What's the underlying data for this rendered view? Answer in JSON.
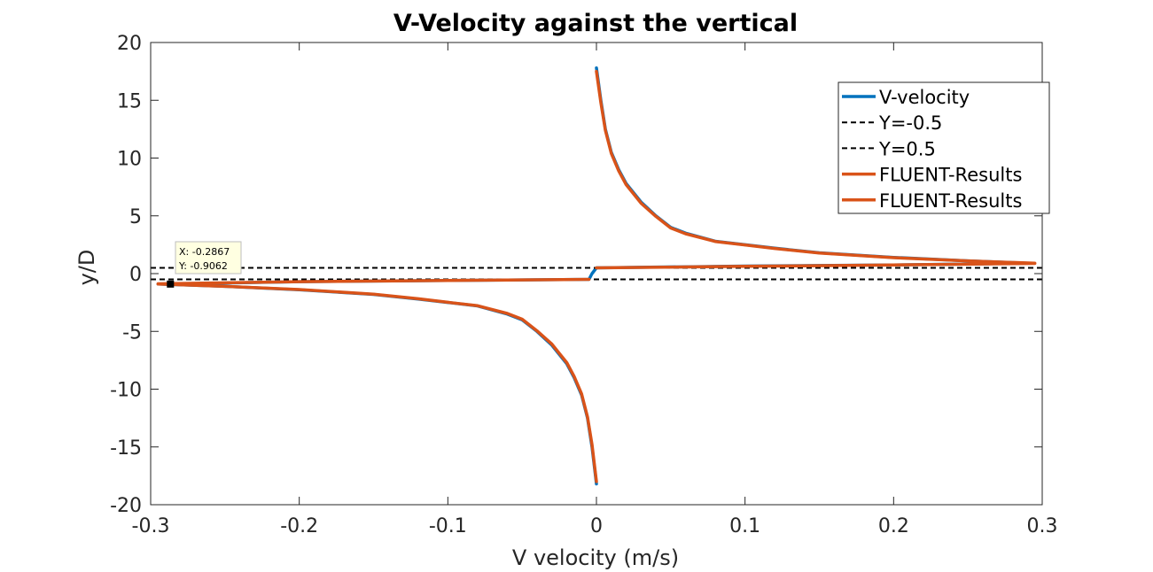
{
  "chart_data": {
    "type": "line",
    "title": "V-Velocity against the vertical",
    "xlabel": "V velocity (m/s)",
    "ylabel": "y/D",
    "xlim": [
      -0.3,
      0.3
    ],
    "ylim": [
      -20,
      20
    ],
    "xticks": [
      -0.3,
      -0.2,
      -0.1,
      0,
      0.1,
      0.2,
      0.3
    ],
    "xtick_labels": [
      "-0.3",
      "-0.2",
      "-0.1",
      "0",
      "0.1",
      "0.2",
      "0.3"
    ],
    "yticks": [
      -20,
      -15,
      -10,
      -5,
      0,
      5,
      10,
      15,
      20
    ],
    "ytick_labels": [
      "-20",
      "-15",
      "-10",
      "-5",
      "0",
      "5",
      "10",
      "15",
      "20"
    ],
    "grid": false,
    "legend_position": "top-right",
    "series": [
      {
        "name": "V-velocity",
        "color": "#0072BD",
        "style": "solid",
        "segments": [
          [
            [
              0.0,
              17.8
            ],
            [
              0.003,
              15.0
            ],
            [
              0.006,
              12.5
            ],
            [
              0.01,
              10.5
            ],
            [
              0.015,
              9.0
            ],
            [
              0.02,
              7.8
            ],
            [
              0.03,
              6.2
            ],
            [
              0.04,
              5.0
            ],
            [
              0.05,
              4.0
            ],
            [
              0.06,
              3.5
            ],
            [
              0.08,
              2.8
            ],
            [
              0.1,
              2.5
            ],
            [
              0.12,
              2.2
            ],
            [
              0.15,
              1.8
            ],
            [
              0.2,
              1.4
            ],
            [
              0.25,
              1.1
            ],
            [
              0.29,
              0.9
            ]
          ],
          [
            [
              0.29,
              0.9
            ],
            [
              0.2,
              0.75
            ],
            [
              0.1,
              0.65
            ],
            [
              0.0,
              0.5
            ],
            [
              -0.003,
              0.0
            ],
            [
              -0.005,
              -0.5
            ],
            [
              -0.1,
              -0.6
            ],
            [
              -0.2,
              -0.7
            ],
            [
              -0.2867,
              -0.9062
            ],
            [
              -0.295,
              -0.9
            ]
          ],
          [
            [
              -0.295,
              -0.9
            ],
            [
              -0.25,
              -1.1
            ],
            [
              -0.2,
              -1.4
            ],
            [
              -0.15,
              -1.8
            ],
            [
              -0.12,
              -2.2
            ],
            [
              -0.1,
              -2.5
            ],
            [
              -0.08,
              -2.8
            ],
            [
              -0.06,
              -3.5
            ],
            [
              -0.05,
              -4.0
            ],
            [
              -0.04,
              -5.0
            ],
            [
              -0.03,
              -6.2
            ],
            [
              -0.02,
              -7.8
            ],
            [
              -0.015,
              -9.0
            ],
            [
              -0.01,
              -10.5
            ],
            [
              -0.006,
              -12.5
            ],
            [
              -0.003,
              -15.0
            ],
            [
              0.0,
              -18.2
            ]
          ]
        ]
      },
      {
        "name": "Y=-0.5",
        "color": "#000000",
        "style": "dashed",
        "segments": [
          [
            [
              -0.3,
              -0.5
            ],
            [
              0.3,
              -0.5
            ]
          ]
        ]
      },
      {
        "name": "Y=0.5",
        "color": "#000000",
        "style": "dashed",
        "segments": [
          [
            [
              -0.3,
              0.5
            ],
            [
              0.3,
              0.5
            ]
          ]
        ]
      },
      {
        "name": "FLUENT-Results",
        "color": "#D95319",
        "style": "solid",
        "segments": [
          [
            [
              0.0,
              17.5
            ],
            [
              0.003,
              14.8
            ],
            [
              0.006,
              12.4
            ],
            [
              0.01,
              10.4
            ],
            [
              0.015,
              8.9
            ],
            [
              0.02,
              7.7
            ],
            [
              0.03,
              6.1
            ],
            [
              0.04,
              4.95
            ],
            [
              0.05,
              3.95
            ],
            [
              0.06,
              3.45
            ],
            [
              0.08,
              2.78
            ],
            [
              0.1,
              2.48
            ],
            [
              0.12,
              2.18
            ],
            [
              0.15,
              1.78
            ],
            [
              0.2,
              1.38
            ],
            [
              0.25,
              1.1
            ],
            [
              0.295,
              0.9
            ]
          ],
          [
            [
              -0.295,
              -0.9
            ],
            [
              -0.25,
              -1.1
            ],
            [
              -0.2,
              -1.38
            ],
            [
              -0.15,
              -1.78
            ],
            [
              -0.12,
              -2.18
            ],
            [
              -0.1,
              -2.48
            ],
            [
              -0.08,
              -2.78
            ],
            [
              -0.06,
              -3.45
            ],
            [
              -0.05,
              -3.95
            ],
            [
              -0.04,
              -4.95
            ],
            [
              -0.03,
              -6.1
            ],
            [
              -0.02,
              -7.7
            ],
            [
              -0.015,
              -8.9
            ],
            [
              -0.01,
              -10.4
            ],
            [
              -0.006,
              -12.4
            ],
            [
              -0.003,
              -14.8
            ],
            [
              0.0,
              -18.0
            ]
          ]
        ]
      },
      {
        "name": "FLUENT-Results",
        "color": "#D95319",
        "style": "solid",
        "segments": [
          [
            [
              0.0,
              0.5
            ],
            [
              0.1,
              0.63
            ],
            [
              0.2,
              0.75
            ],
            [
              0.295,
              0.88
            ]
          ],
          [
            [
              -0.005,
              -0.5
            ],
            [
              -0.1,
              -0.6
            ],
            [
              -0.2,
              -0.7
            ],
            [
              -0.295,
              -0.88
            ]
          ]
        ]
      }
    ],
    "datatip": {
      "x": -0.2867,
      "y": -0.9062,
      "x_text": "X: -0.2867",
      "y_text": "Y: -0.9062"
    }
  }
}
